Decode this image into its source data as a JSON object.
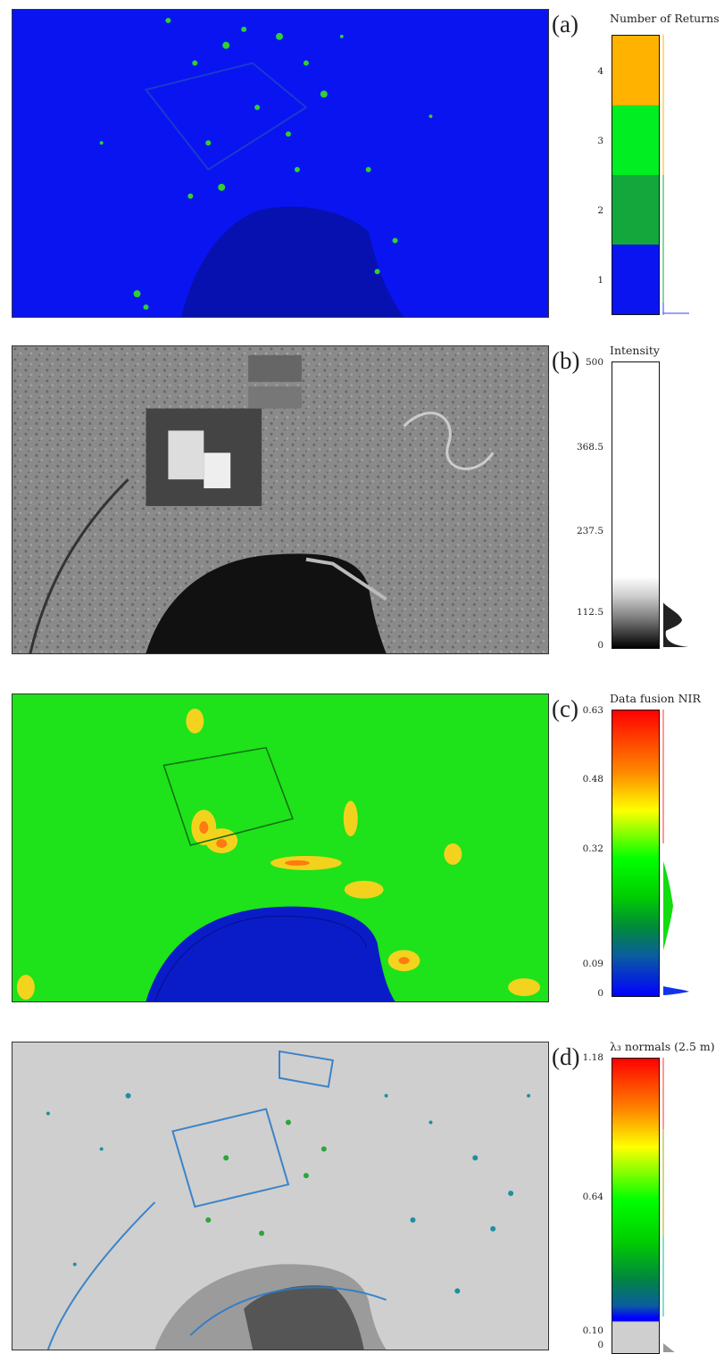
{
  "panels": [
    {
      "label": "(a)",
      "legend_title": "Number of Returns",
      "ticks": [
        "4",
        "3",
        "2",
        "1"
      ],
      "colors": {
        "ground": "#0a14f0",
        "veg": "#22c422",
        "orange": "#ffb300",
        "green": "#00ee22",
        "darkgreen": "#14a83c",
        "blue": "#0a14f0"
      }
    },
    {
      "label": "(b)",
      "legend_title": "Intensity",
      "ticks": [
        "500",
        "368.5",
        "237.5",
        "112.5",
        "0"
      ]
    },
    {
      "label": "(c)",
      "legend_title": "Data fusion NIR",
      "ticks": [
        "0.63",
        "0.48",
        "0.32",
        "0.09",
        "0"
      ]
    },
    {
      "label": "(d)",
      "legend_title": "λ₃ normals (2.5 m)",
      "ticks": [
        "1.18",
        "0.64",
        "0.10",
        "0"
      ]
    }
  ]
}
